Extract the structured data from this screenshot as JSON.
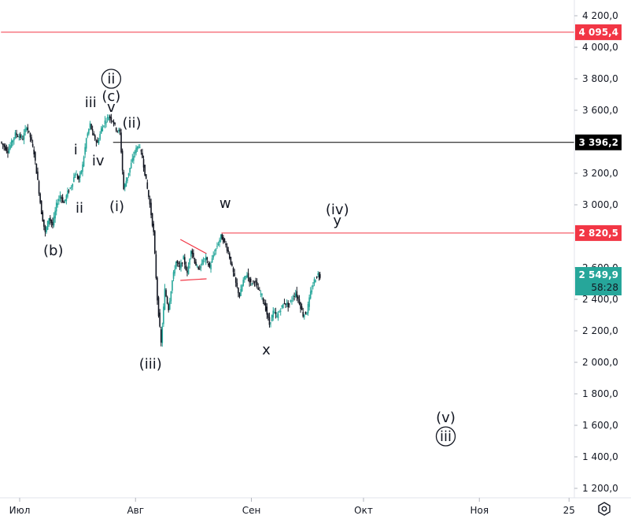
{
  "chart_data": {
    "type": "candlestick",
    "y_axis": {
      "min": 1100,
      "max": 4300,
      "ticks": [
        {
          "value": 4200,
          "label": "4 200,0"
        },
        {
          "value": 4000,
          "label": "4 000,0"
        },
        {
          "value": 3800,
          "label": "3 800,0"
        },
        {
          "value": 3600,
          "label": "3 600,0"
        },
        {
          "value": 3200,
          "label": "3 200,0"
        },
        {
          "value": 3000,
          "label": "3 000,0"
        },
        {
          "value": 2600,
          "label": "2 600,0"
        },
        {
          "value": 2400,
          "label": "2 400,0"
        },
        {
          "value": 2200,
          "label": "2 200,0"
        },
        {
          "value": 2000,
          "label": "2 000,0"
        },
        {
          "value": 1800,
          "label": "1 800,0"
        },
        {
          "value": 1600,
          "label": "1 600,0"
        },
        {
          "value": 1400,
          "label": "1 400,0"
        },
        {
          "value": 1200,
          "label": "1 200,0"
        }
      ]
    },
    "x_axis": {
      "ticks": [
        {
          "day": 0,
          "label": "Июл"
        },
        {
          "day": 31,
          "label": "Авг"
        },
        {
          "day": 62,
          "label": "Сен"
        },
        {
          "day": 92,
          "label": "Окт"
        },
        {
          "day": 123,
          "label": "Ноя"
        },
        {
          "day": 147,
          "label": "25"
        }
      ]
    },
    "levels": [
      {
        "value": 4095.4,
        "label": "4 095,4",
        "color": "#f23645",
        "line_start_day": -5
      },
      {
        "value": 3396.2,
        "label": "3 396,2",
        "color": "#000000",
        "line_start_day": 25
      },
      {
        "value": 2820.5,
        "label": "2 820,5",
        "color": "#f23645",
        "line_start_day": 54
      }
    ],
    "current_price": {
      "value": 2549.9,
      "label": "2 549,9",
      "countdown": "58:28",
      "color": "#26a69a"
    },
    "price_path": [
      [
        -5,
        3400
      ],
      [
        -3,
        3340
      ],
      [
        -1,
        3450
      ],
      [
        1,
        3420
      ],
      [
        2,
        3500
      ],
      [
        3,
        3430
      ],
      [
        4,
        3330
      ],
      [
        5,
        3150
      ],
      [
        6,
        2950
      ],
      [
        7,
        2820
      ],
      [
        8,
        2920
      ],
      [
        9,
        2870
      ],
      [
        10,
        3000
      ],
      [
        11,
        3060
      ],
      [
        12,
        3010
      ],
      [
        13,
        3080
      ],
      [
        14,
        3120
      ],
      [
        15,
        3200
      ],
      [
        16,
        3160
      ],
      [
        17,
        3250
      ],
      [
        18,
        3420
      ],
      [
        19,
        3510
      ],
      [
        20,
        3430
      ],
      [
        21,
        3390
      ],
      [
        22,
        3480
      ],
      [
        23,
        3530
      ],
      [
        24,
        3560
      ],
      [
        25,
        3540
      ],
      [
        26,
        3480
      ],
      [
        27,
        3460
      ],
      [
        28,
        3100
      ],
      [
        29,
        3180
      ],
      [
        30,
        3260
      ],
      [
        31,
        3340
      ],
      [
        32,
        3380
      ],
      [
        33,
        3300
      ],
      [
        34,
        3150
      ],
      [
        35,
        3000
      ],
      [
        36,
        2820
      ],
      [
        37,
        2400
      ],
      [
        38,
        2120
      ],
      [
        39,
        2460
      ],
      [
        40,
        2340
      ],
      [
        41,
        2520
      ],
      [
        42,
        2640
      ],
      [
        43,
        2600
      ],
      [
        44,
        2660
      ],
      [
        45,
        2560
      ],
      [
        46,
        2720
      ],
      [
        47,
        2640
      ],
      [
        48,
        2580
      ],
      [
        49,
        2640
      ],
      [
        50,
        2660
      ],
      [
        51,
        2600
      ],
      [
        52,
        2680
      ],
      [
        53,
        2740
      ],
      [
        54,
        2800
      ],
      [
        55,
        2760
      ],
      [
        56,
        2700
      ],
      [
        57,
        2600
      ],
      [
        58,
        2500
      ],
      [
        59,
        2420
      ],
      [
        60,
        2520
      ],
      [
        61,
        2560
      ],
      [
        62,
        2500
      ],
      [
        63,
        2520
      ],
      [
        64,
        2460
      ],
      [
        65,
        2420
      ],
      [
        66,
        2340
      ],
      [
        67,
        2240
      ],
      [
        68,
        2320
      ],
      [
        69,
        2290
      ],
      [
        70,
        2340
      ],
      [
        71,
        2380
      ],
      [
        72,
        2360
      ],
      [
        73,
        2400
      ],
      [
        74,
        2440
      ],
      [
        75,
        2380
      ],
      [
        76,
        2300
      ],
      [
        77,
        2320
      ],
      [
        78,
        2440
      ],
      [
        79,
        2520
      ],
      [
        80,
        2560
      ],
      [
        80.5,
        2549.9
      ]
    ],
    "wave_labels": [
      {
        "text": "(b)",
        "day": 9,
        "value": 2680
      },
      {
        "text": "i",
        "day": 15,
        "value": 3320
      },
      {
        "text": "ii",
        "day": 16,
        "value": 2950
      },
      {
        "text": "iii",
        "day": 19,
        "value": 3620
      },
      {
        "text": "iv",
        "day": 21,
        "value": 3250
      },
      {
        "text": "v",
        "day": 24.5,
        "value": 3590
      },
      {
        "text": "(c)",
        "day": 24.5,
        "value": 3660
      },
      {
        "text": "ii",
        "day": 24.5,
        "value": 3770,
        "circled": true
      },
      {
        "text": "(ii)",
        "day": 30,
        "value": 3490
      },
      {
        "text": "(i)",
        "day": 26,
        "value": 2960
      },
      {
        "text": "(iii)",
        "day": 35,
        "value": 1960
      },
      {
        "text": "w",
        "day": 55,
        "value": 2980
      },
      {
        "text": "x",
        "day": 66,
        "value": 2050
      },
      {
        "text": "(iv)",
        "day": 85,
        "value": 2940
      },
      {
        "text": "y",
        "day": 85,
        "value": 2870
      },
      {
        "text": "(v)",
        "day": 114,
        "value": 1620
      },
      {
        "text": "iii",
        "day": 114,
        "value": 1500,
        "circled": true
      }
    ],
    "triangle": [
      {
        "from": [
          43,
          2780
        ],
        "to": [
          50,
          2690
        ]
      },
      {
        "from": [
          43,
          2520
        ],
        "to": [
          50,
          2530
        ]
      }
    ],
    "colors": {
      "up": "#26a69a",
      "down": "#131722",
      "axis": "#e0e3eb",
      "text": "#131722"
    }
  },
  "toolbar": {
    "settings_icon": "gear-icon"
  }
}
